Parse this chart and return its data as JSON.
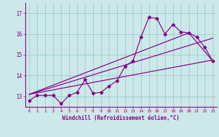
{
  "xlabel": "Windchill (Refroidissement éolien,°C)",
  "bg_color": "#cce8e8",
  "grid_color": "#99cccc",
  "line_color": "#880088",
  "xlim": [
    -0.5,
    23.5
  ],
  "ylim": [
    12.5,
    17.5
  ],
  "yticks": [
    13,
    14,
    15,
    16,
    17
  ],
  "xticks": [
    0,
    1,
    2,
    3,
    4,
    5,
    6,
    7,
    8,
    9,
    10,
    11,
    12,
    13,
    14,
    15,
    16,
    17,
    18,
    19,
    20,
    21,
    22,
    23
  ],
  "series1_x": [
    0,
    1,
    2,
    3,
    4,
    5,
    6,
    7,
    8,
    9,
    10,
    11,
    12,
    13,
    14,
    15,
    16,
    17,
    18,
    19,
    20,
    21,
    22,
    23
  ],
  "series1_y": [
    12.8,
    13.05,
    13.05,
    13.05,
    12.65,
    13.05,
    13.2,
    13.8,
    13.15,
    13.2,
    13.5,
    13.75,
    14.45,
    14.7,
    15.85,
    16.8,
    16.75,
    16.0,
    16.45,
    16.1,
    16.05,
    15.85,
    15.35,
    14.7
  ],
  "series2_x": [
    0,
    23
  ],
  "series2_y": [
    13.1,
    14.75
  ],
  "series3_x": [
    0,
    23
  ],
  "series3_y": [
    13.1,
    15.8
  ],
  "series4_x": [
    0,
    20,
    23
  ],
  "series4_y": [
    13.1,
    16.05,
    14.7
  ]
}
